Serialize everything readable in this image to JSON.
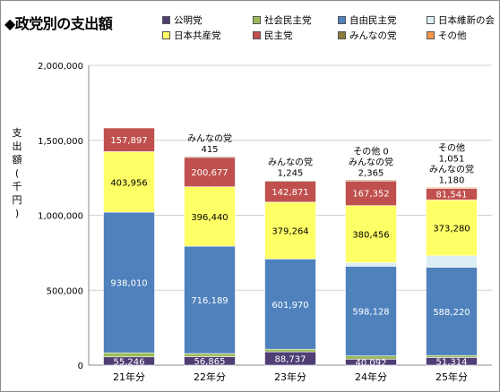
{
  "title": "◆政党別の支出額",
  "y_axis_label": "支出額(千円)",
  "chart_data": {
    "type": "bar",
    "stacked": true,
    "categories": [
      "21年分",
      "22年分",
      "23年分",
      "24年分",
      "25年分"
    ],
    "ylim": [
      0,
      2000000
    ],
    "yticks": [
      "0",
      "500,000",
      "1,000,000",
      "1,500,000",
      "2,000,000"
    ],
    "grid": true,
    "legend_position": "top",
    "series": [
      {
        "name": "公明党",
        "color": "#4f3f75",
        "values": [
          55246,
          56865,
          88737,
          40092,
          51314
        ],
        "labels": [
          "55,246",
          "56,865",
          "88,737",
          "40,092",
          "51,314"
        ]
      },
      {
        "name": "社会民主党",
        "color": "#9bbb59",
        "values": [
          27045,
          20650,
          17545,
          21544,
          13235
        ],
        "labels": [
          "27,045",
          "20,650",
          "17,545",
          "21,544",
          "13,235"
        ]
      },
      {
        "name": "自由民主党",
        "color": "#4f81bd",
        "values": [
          938010,
          716189,
          601970,
          598128,
          588220
        ],
        "labels": [
          "938,010",
          "716,189",
          "601,970",
          "598,128",
          "588,220"
        ]
      },
      {
        "name": "日本維新の会",
        "color": "#dbeef4",
        "values": [
          0,
          0,
          0,
          24204,
          76643
        ],
        "labels": [
          "",
          "",
          "",
          "24,204",
          "76,643"
        ]
      },
      {
        "name": "日本共産党",
        "color": "#ffff66",
        "values": [
          403956,
          396440,
          379264,
          380456,
          373280
        ],
        "labels": [
          "403,956",
          "396,440",
          "379,264",
          "380,456",
          "373,280"
        ]
      },
      {
        "name": "民主党",
        "color": "#c0504d",
        "values": [
          157897,
          200677,
          142871,
          167352,
          81541
        ],
        "labels": [
          "157,897",
          "200,677",
          "142,871",
          "167,352",
          "81,541"
        ]
      },
      {
        "name": "みんなの党",
        "color": "#8a7d3c",
        "values": [
          0,
          415,
          1245,
          2365,
          1180
        ],
        "labels": [
          "",
          "415",
          "1,245",
          "2,365",
          "1,180"
        ]
      },
      {
        "name": "その他",
        "color": "#f79646",
        "values": [
          0,
          0,
          0,
          0,
          1051
        ],
        "labels": [
          "",
          "",
          "",
          "0",
          "1,051"
        ]
      }
    ],
    "annotations": [
      {
        "category_index": 1,
        "lines": [
          "みんなの党",
          "415"
        ]
      },
      {
        "category_index": 2,
        "lines": [
          "みんなの党",
          "1,245"
        ]
      },
      {
        "category_index": 3,
        "lines": [
          "その他 0",
          "みんなの党",
          "2,365"
        ]
      },
      {
        "category_index": 4,
        "lines": [
          "その他",
          "1,051",
          "みんなの党",
          "1,180"
        ]
      }
    ]
  }
}
